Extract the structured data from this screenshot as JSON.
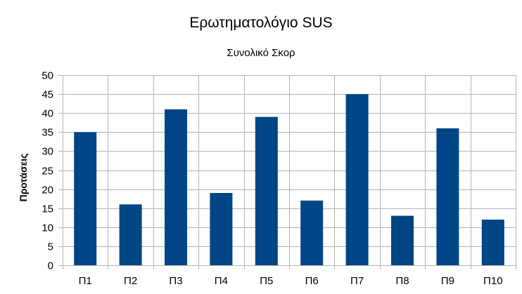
{
  "chart_data": {
    "type": "bar",
    "title": "Ερωτηματολόγιο SUS",
    "subtitle": "Συνολικό Σκορ",
    "ylabel": "Προτάσεις",
    "xlabel": "",
    "categories": [
      "Π1",
      "Π2",
      "Π3",
      "Π4",
      "Π5",
      "Π6",
      "Π7",
      "Π8",
      "Π9",
      "Π10"
    ],
    "values": [
      35,
      16,
      41,
      19,
      39,
      17,
      45,
      13,
      36,
      12
    ],
    "ylim": [
      0,
      50
    ],
    "yticks": [
      "0",
      "5",
      "10",
      "15",
      "20",
      "25",
      "30",
      "35",
      "40",
      "45",
      "50"
    ],
    "grid": true,
    "legend": "none",
    "bar_color": "#004586",
    "grid_color": "#b3b3b3"
  }
}
